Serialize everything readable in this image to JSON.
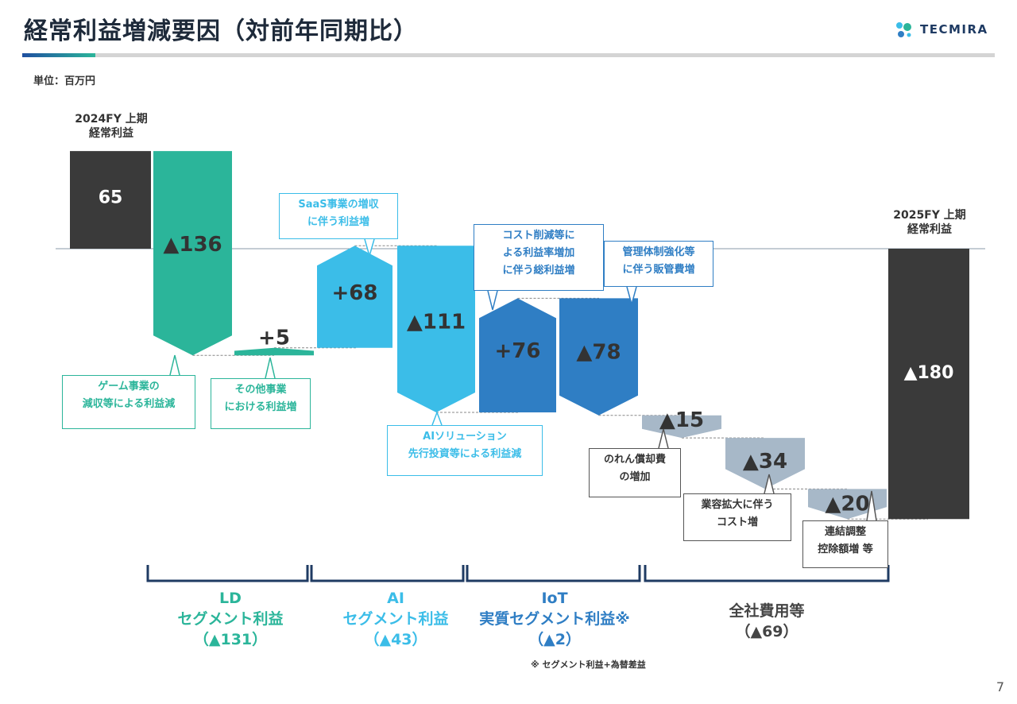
{
  "title": "経常利益増減要因（対前年同期比）",
  "logo": "TECMIRA",
  "unit": "単位：百万円",
  "page_number": "7",
  "colors": {
    "total": "#3a3a3a",
    "ld": "#2bb59a",
    "ai": "#3bbde8",
    "iot": "#2f7ec4",
    "corp": "#a7b8c8"
  },
  "chart_data": {
    "type": "waterfall",
    "start_label": "2024FY 上期\n経常利益",
    "end_label": "2025FY  上期\n経常利益",
    "bars": [
      {
        "label": "65",
        "value": 65,
        "kind": "total",
        "group": "total"
      },
      {
        "label": "▲136",
        "value": -136,
        "kind": "delta",
        "group": "ld"
      },
      {
        "label": "+5",
        "value": 5,
        "kind": "delta",
        "group": "ld"
      },
      {
        "label": "+68",
        "value": 68,
        "kind": "delta",
        "group": "ai"
      },
      {
        "label": "▲111",
        "value": -111,
        "kind": "delta",
        "group": "ai"
      },
      {
        "label": "+76",
        "value": 76,
        "kind": "delta",
        "group": "iot"
      },
      {
        "label": "▲78",
        "value": -78,
        "kind": "delta",
        "group": "iot"
      },
      {
        "label": "▲15",
        "value": -15,
        "kind": "delta",
        "group": "corp"
      },
      {
        "label": "▲34",
        "value": -34,
        "kind": "delta",
        "group": "corp"
      },
      {
        "label": "▲20",
        "value": -20,
        "kind": "delta",
        "group": "corp"
      },
      {
        "label": "▲180",
        "value": -180,
        "kind": "total",
        "group": "total"
      }
    ],
    "callouts": [
      "ゲーム事業の\n減収等による利益減",
      "その他事業\nにおける利益増",
      "SaaS事業の増収\nに伴う利益増",
      "AIソリューション\n先行投資等による利益減",
      "コスト削減等に\nよる利益率増加\nに伴う総利益増",
      "管理体制強化等\nに伴う販管費増",
      "のれん償却費\nの増加",
      "業容拡大に伴う\nコスト増",
      "連結調整\n控除額増 等"
    ],
    "segments": [
      {
        "name": "LD\nセグメント利益",
        "total": "（▲131）"
      },
      {
        "name": "AI\nセグメント利益",
        "total": "（▲43）"
      },
      {
        "name": "IoT\n実質セグメント利益※",
        "total": "（▲2）"
      },
      {
        "name": "全社費用等",
        "total": "（▲69）"
      }
    ],
    "footnote": "※ セグメント利益+為替差益"
  }
}
